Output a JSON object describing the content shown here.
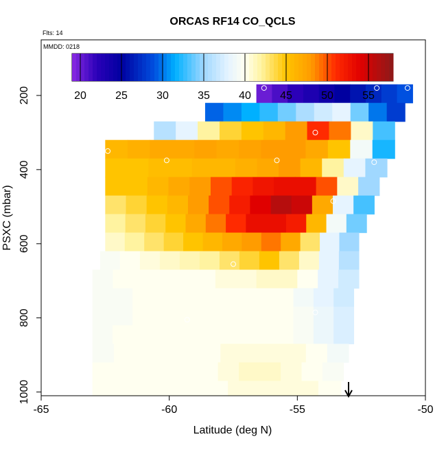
{
  "chart_data": {
    "type": "heatmap",
    "title": "ORCAS RF14 CO_QCLS",
    "flights_note": "Flts: 14",
    "date_note": "MMDD: 0218",
    "xlabel": "Latitude (deg N)",
    "ylabel": "PSXC (mbar)",
    "xlim": [
      -65,
      -50
    ],
    "ylim": [
      1010,
      50
    ],
    "x_ticks": [
      -65,
      -60,
      -55,
      -50
    ],
    "y_ticks": [
      200,
      400,
      600,
      800,
      1000
    ],
    "colorbar": {
      "range": [
        19,
        58
      ],
      "ticks": [
        20,
        25,
        30,
        35,
        40,
        45,
        50,
        55
      ],
      "stops": [
        {
          "v": 19,
          "c": "#8a2be2"
        },
        {
          "v": 22,
          "c": "#2b00b8"
        },
        {
          "v": 25,
          "c": "#0000a0"
        },
        {
          "v": 29,
          "c": "#0050e0"
        },
        {
          "v": 31.5,
          "c": "#00b0ff"
        },
        {
          "v": 35,
          "c": "#a0d8ff"
        },
        {
          "v": 38,
          "c": "#e6f4ff"
        },
        {
          "v": 40,
          "c": "#fffff0"
        },
        {
          "v": 42,
          "c": "#fff3a0"
        },
        {
          "v": 45,
          "c": "#ffc400"
        },
        {
          "v": 48,
          "c": "#ff9c00"
        },
        {
          "v": 51,
          "c": "#ff2a00"
        },
        {
          "v": 54,
          "c": "#e00000"
        },
        {
          "v": 58,
          "c": "#8c1a1a"
        }
      ]
    },
    "bands": [
      {
        "p_top": 170,
        "p_bot": 220,
        "lat_start": -56.6,
        "lat_end": -50.5,
        "values": [
          20,
          21,
          22,
          23,
          24,
          25,
          26,
          27,
          28,
          29
        ]
      },
      {
        "p_top": 220,
        "p_bot": 270,
        "lat_start": -58.6,
        "lat_end": -50.8,
        "values": [
          29.5,
          30.5,
          31.5,
          32.5,
          34,
          35.5,
          37,
          38,
          34,
          30,
          28
        ]
      },
      {
        "p_top": 270,
        "p_bot": 320,
        "lat_start": -60.6,
        "lat_end": -51.2,
        "values": [
          36,
          38,
          42,
          44,
          45,
          46,
          48,
          51,
          49,
          41,
          33
        ]
      },
      {
        "p_top": 320,
        "p_bot": 370,
        "lat_start": -62.5,
        "lat_end": -51.2,
        "values": [
          46,
          46.5,
          47,
          47,
          47.5,
          47,
          47.5,
          48,
          48,
          47,
          45,
          39,
          32
        ]
      },
      {
        "p_top": 370,
        "p_bot": 420,
        "lat_start": -62.5,
        "lat_end": -51.5,
        "values": [
          45,
          45,
          45.5,
          45.5,
          46,
          46,
          46.5,
          47,
          48,
          46,
          42,
          38,
          35
        ]
      },
      {
        "p_top": 420,
        "p_bot": 470,
        "lat_start": -62.5,
        "lat_end": -51.8,
        "values": [
          45,
          45,
          46,
          47,
          48,
          50,
          51.5,
          52.5,
          53,
          53,
          50,
          41,
          35
        ]
      },
      {
        "p_top": 470,
        "p_bot": 520,
        "lat_start": -62.5,
        "lat_end": -52.0,
        "values": [
          43,
          44,
          45,
          46,
          48,
          50,
          52,
          54,
          56,
          55,
          47,
          38,
          33
        ]
      },
      {
        "p_top": 520,
        "p_bot": 570,
        "lat_start": -62.5,
        "lat_end": -52.3,
        "values": [
          42,
          43,
          44,
          45,
          47,
          49,
          51,
          53,
          53,
          52,
          46,
          39,
          34
        ]
      },
      {
        "p_top": 570,
        "p_bot": 620,
        "lat_start": -62.5,
        "lat_end": -52.6,
        "values": [
          41,
          42,
          43,
          44,
          45,
          46,
          47,
          48,
          49,
          47,
          43,
          38,
          35
        ]
      },
      {
        "p_top": 620,
        "p_bot": 670,
        "lat_start": -62.7,
        "lat_end": -52.6,
        "values": [
          39.5,
          40,
          40.5,
          41,
          41.5,
          42,
          43,
          44,
          45,
          43,
          41,
          38,
          36
        ]
      },
      {
        "p_top": 670,
        "p_bot": 720,
        "lat_start": -63.0,
        "lat_end": -52.6,
        "values": [
          39.5,
          40,
          40,
          40,
          40,
          40,
          40.5,
          40.5,
          41,
          41,
          40,
          38,
          37
        ]
      },
      {
        "p_top": 720,
        "p_bot": 770,
        "lat_start": -63.0,
        "lat_end": -52.8,
        "values": [
          39.5,
          39.5,
          40,
          40,
          40,
          40,
          40,
          40,
          40,
          40,
          39,
          38,
          37
        ]
      },
      {
        "p_top": 770,
        "p_bot": 820,
        "lat_start": -63.0,
        "lat_end": -52.8,
        "values": [
          39.5,
          39.5,
          40,
          40,
          40,
          40,
          40,
          40,
          40,
          40,
          39.5,
          38.5,
          37.5
        ]
      },
      {
        "p_top": 820,
        "p_bot": 870,
        "lat_start": -63.0,
        "lat_end": -52.8,
        "values": [
          39.5,
          40,
          40,
          40,
          40,
          40,
          40,
          40,
          40,
          40,
          39.5,
          38.5,
          37.5
        ]
      },
      {
        "p_top": 870,
        "p_bot": 920,
        "lat_start": -63.0,
        "lat_end": -53.0,
        "values": [
          39.5,
          40,
          40,
          40,
          40,
          40,
          40.5,
          40.5,
          40.5,
          40.5,
          40,
          39
        ]
      },
      {
        "p_top": 920,
        "p_bot": 970,
        "lat_start": -63.0,
        "lat_end": -53.2,
        "values": [
          40,
          40,
          40,
          40,
          40,
          40,
          40.5,
          41,
          41,
          40.5,
          40,
          39.5
        ]
      },
      {
        "p_top": 970,
        "p_bot": 1010,
        "lat_start": -63.0,
        "lat_end": -53.3,
        "values": [
          40,
          40,
          40,
          40,
          40,
          40,
          40.5,
          40.5,
          40.5,
          40.5,
          40
        ]
      }
    ],
    "markers": [
      {
        "lat": -56.3,
        "p": 180
      },
      {
        "lat": -51.9,
        "p": 180
      },
      {
        "lat": -50.7,
        "p": 180
      },
      {
        "lat": -54.3,
        "p": 300
      },
      {
        "lat": -62.4,
        "p": 350
      },
      {
        "lat": -60.1,
        "p": 375
      },
      {
        "lat": -55.8,
        "p": 375
      },
      {
        "lat": -52.0,
        "p": 380
      },
      {
        "lat": -53.6,
        "p": 485
      },
      {
        "lat": -57.5,
        "p": 655
      },
      {
        "lat": -59.3,
        "p": 805
      },
      {
        "lat": -54.3,
        "p": 785
      }
    ],
    "arrow_latitude": -53.0
  }
}
